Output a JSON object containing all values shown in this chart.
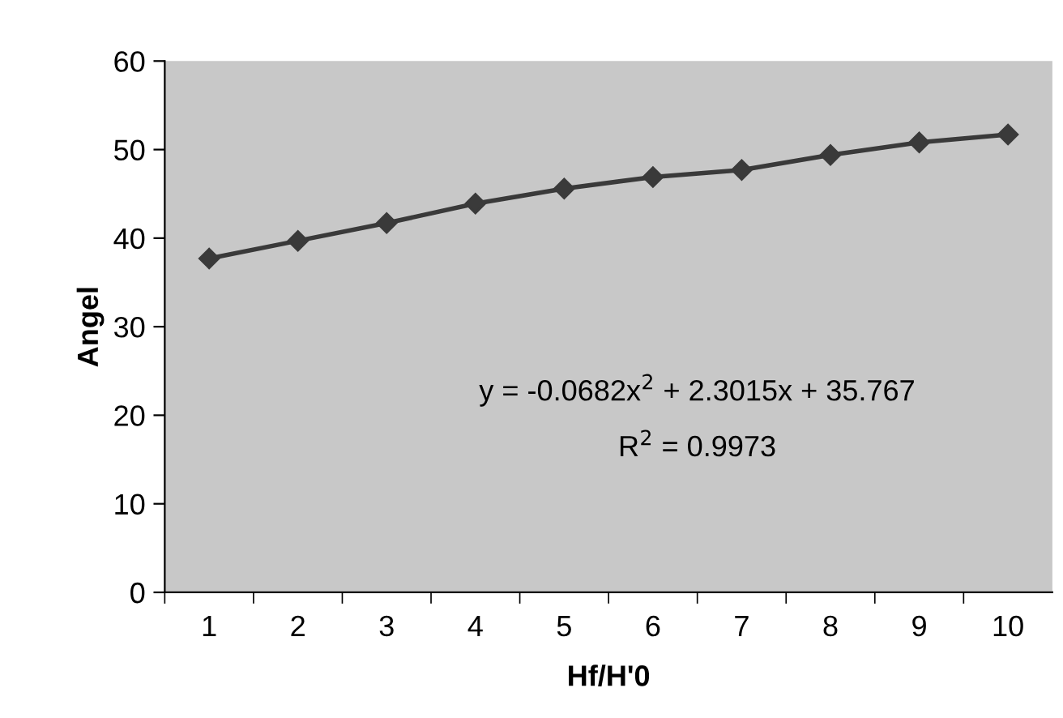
{
  "chart_data": {
    "type": "line",
    "xlabel": "Hf/H'0",
    "ylabel": "Angel",
    "categories": [
      "1",
      "2",
      "3",
      "4",
      "5",
      "6",
      "7",
      "8",
      "9",
      "10"
    ],
    "series": [
      {
        "color": "#3a3a3a",
        "values": [
          37.7,
          39.7,
          41.7,
          43.9,
          45.6,
          46.9,
          47.7,
          49.4,
          50.8,
          51.7
        ]
      }
    ],
    "ylim": [
      0,
      60
    ],
    "yticks": [
      0,
      10,
      20,
      30,
      40,
      50,
      60
    ],
    "grid": false,
    "marker": "diamond",
    "line_style": "solid",
    "annotations": [
      "y = -0.0682x$^{2}$ + 2.3015x + 35.767",
      "R$^{2}$ = 0.9973"
    ]
  }
}
